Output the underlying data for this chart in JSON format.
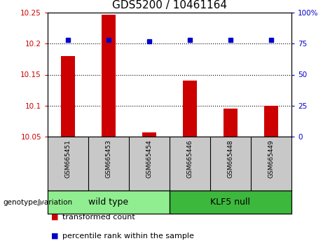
{
  "title": "GDS5200 / 10461164",
  "samples": [
    "GSM665451",
    "GSM665453",
    "GSM665454",
    "GSM665446",
    "GSM665448",
    "GSM665449"
  ],
  "red_values": [
    10.18,
    10.247,
    10.057,
    10.14,
    10.095,
    10.1
  ],
  "blue_values": [
    78,
    78,
    77,
    78,
    78,
    78
  ],
  "ylim_left": [
    10.05,
    10.25
  ],
  "ylim_right": [
    0,
    100
  ],
  "yticks_left": [
    10.05,
    10.1,
    10.15,
    10.2,
    10.25
  ],
  "ytick_labels_left": [
    "10.05",
    "10.1",
    "10.15",
    "10.2",
    "10.25"
  ],
  "yticks_right": [
    0,
    25,
    50,
    75,
    100
  ],
  "ytick_labels_right": [
    "0",
    "25",
    "50",
    "75",
    "100%"
  ],
  "grid_lines": [
    10.1,
    10.15,
    10.2
  ],
  "groups": [
    {
      "label": "wild type",
      "indices": [
        0,
        1,
        2
      ],
      "color": "#90EE90"
    },
    {
      "label": "KLF5 null",
      "indices": [
        3,
        4,
        5
      ],
      "color": "#3CB83C"
    }
  ],
  "group_label": "genotype/variation",
  "bar_color": "#CC0000",
  "dot_color": "#0000CC",
  "bar_baseline": 10.05,
  "legend_items": [
    {
      "label": "transformed count",
      "color": "#CC0000"
    },
    {
      "label": "percentile rank within the sample",
      "color": "#0000CC"
    }
  ],
  "plot_bg_color": "#FFFFFF",
  "tick_label_area_color": "#C8C8C8",
  "title_fontsize": 11,
  "tick_fontsize": 7.5,
  "sample_label_fontsize": 6.5,
  "group_fontsize": 9,
  "legend_fontsize": 8,
  "bar_width": 0.35
}
